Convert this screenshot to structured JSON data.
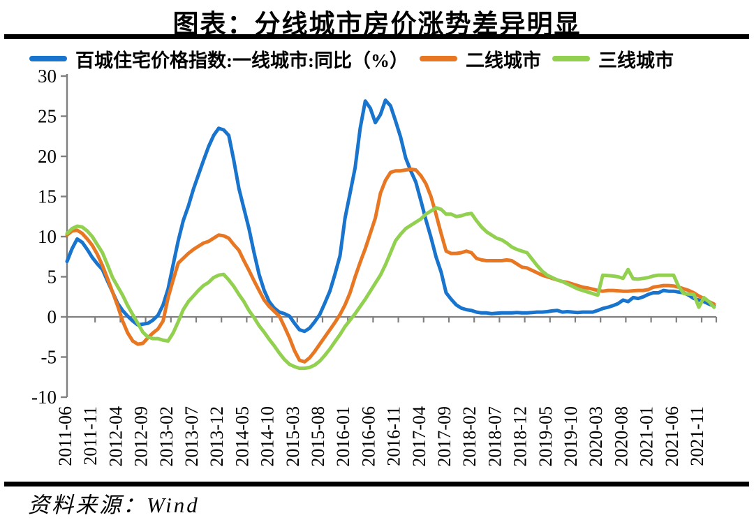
{
  "page": {
    "title": "图表：分线城市房价涨势差异明显",
    "source": "资料来源：Wind"
  },
  "colors": {
    "first_tier": "#1874cd",
    "second_tier": "#e87723",
    "third_tier": "#92d050",
    "axis": "#7f7f7f",
    "rule": "#000000"
  },
  "legend": {
    "items": [
      {
        "label": "百城住宅价格指数:一线城市:同比（%）",
        "color": "#1874cd"
      },
      {
        "label": "二线城市",
        "color": "#e87723"
      },
      {
        "label": "三线城市",
        "color": "#92d050"
      }
    ]
  },
  "chart_data": {
    "type": "line",
    "title": "图表：分线城市房价涨势差异明显",
    "xlabel": "",
    "ylabel": "",
    "ylim": [
      -10,
      30
    ],
    "y_ticks": [
      30,
      25,
      20,
      15,
      10,
      5,
      0,
      -5,
      -10
    ],
    "grid": false,
    "legend_position": "top",
    "x_unit": "monthly",
    "x_start": "2011-06",
    "x_end": "2022-02",
    "x_tick_labels": [
      "2011-06",
      "2011-11",
      "2012-04",
      "2012-09",
      "2013-02",
      "2013-07",
      "2013-12",
      "2014-05",
      "2014-10",
      "2015-03",
      "2015-08",
      "2016-01",
      "2016-06",
      "2016-11",
      "2017-04",
      "2017-09",
      "2018-02",
      "2018-07",
      "2018-12",
      "2019-05",
      "2019-10",
      "2020-03",
      "2020-08",
      "2021-01",
      "2021-06",
      "2021-11"
    ],
    "series": [
      {
        "id": "first-tier",
        "name": "百城住宅价格指数:一线城市:同比（%）",
        "color": "#1874cd",
        "values": [
          6.9,
          8.5,
          9.7,
          9.3,
          8.4,
          7.4,
          6.6,
          5.9,
          4.5,
          3.1,
          1.7,
          0.8,
          0.1,
          -0.5,
          -1.0,
          -0.9,
          -0.8,
          -0.4,
          0.2,
          1.5,
          3.5,
          6.5,
          9.5,
          12.0,
          13.8,
          15.9,
          17.7,
          19.5,
          21.2,
          22.6,
          23.5,
          23.3,
          22.6,
          19.5,
          16.0,
          13.5,
          11.0,
          8.0,
          5.3,
          3.3,
          1.9,
          1.1,
          0.6,
          0.4,
          0.1,
          -0.8,
          -1.6,
          -1.8,
          -1.4,
          -0.6,
          0.3,
          1.7,
          3.2,
          5.3,
          7.6,
          12.3,
          15.4,
          18.6,
          23.5,
          26.9,
          26.0,
          24.2,
          25.2,
          27.0,
          26.3,
          24.4,
          22.4,
          19.8,
          18.2,
          16.8,
          14.5,
          12.1,
          9.9,
          7.5,
          5.6,
          3.0,
          2.2,
          1.5,
          1.1,
          0.9,
          0.8,
          0.6,
          0.5,
          0.5,
          0.4,
          0.45,
          0.5,
          0.5,
          0.5,
          0.55,
          0.5,
          0.5,
          0.55,
          0.6,
          0.6,
          0.65,
          0.75,
          0.8,
          0.6,
          0.65,
          0.6,
          0.55,
          0.6,
          0.6,
          0.6,
          0.8,
          1.05,
          1.2,
          1.4,
          1.65,
          2.1,
          1.9,
          2.4,
          2.3,
          2.5,
          2.8,
          3.0,
          3.0,
          3.3,
          3.2,
          3.2,
          3.1,
          3.0,
          2.7,
          2.3,
          2.1,
          1.9,
          1.6,
          1.35
        ]
      },
      {
        "id": "second-tier",
        "name": "二线城市",
        "color": "#e87723",
        "values": [
          10.2,
          10.7,
          10.8,
          10.4,
          9.7,
          8.9,
          7.8,
          6.4,
          4.8,
          3.1,
          1.4,
          -0.5,
          -2.0,
          -3.0,
          -3.4,
          -3.3,
          -2.6,
          -2.0,
          -1.5,
          -0.5,
          2.4,
          4.6,
          6.7,
          7.3,
          7.9,
          8.4,
          8.8,
          9.2,
          9.4,
          9.8,
          10.2,
          10.1,
          9.8,
          9.0,
          8.3,
          7.0,
          5.8,
          4.5,
          3.3,
          2.1,
          1.3,
          0.7,
          0.1,
          -1.2,
          -2.6,
          -4.2,
          -5.4,
          -5.6,
          -5.1,
          -4.3,
          -3.4,
          -2.5,
          -1.6,
          -0.7,
          0.3,
          1.5,
          3.0,
          5.0,
          6.8,
          8.5,
          10.4,
          12.3,
          15.4,
          17.0,
          18.0,
          18.2,
          18.2,
          18.3,
          18.4,
          18.3,
          17.6,
          16.6,
          15.0,
          12.8,
          10.4,
          8.2,
          7.9,
          7.9,
          8.0,
          8.2,
          8.0,
          7.3,
          7.1,
          7.0,
          7.0,
          7.0,
          7.0,
          7.1,
          7.0,
          6.6,
          6.2,
          6.1,
          5.8,
          5.5,
          5.2,
          5.0,
          4.8,
          4.6,
          4.4,
          4.3,
          4.1,
          3.9,
          3.7,
          3.6,
          3.45,
          3.3,
          3.2,
          3.3,
          3.3,
          3.25,
          3.2,
          3.2,
          3.25,
          3.3,
          3.3,
          3.4,
          3.7,
          3.8,
          3.9,
          3.9,
          3.85,
          3.7,
          3.5,
          3.3,
          3.0,
          2.6,
          2.3,
          1.9,
          1.6
        ]
      },
      {
        "id": "third-tier",
        "name": "三线城市",
        "color": "#92d050",
        "values": [
          10.4,
          11.0,
          11.3,
          11.2,
          10.7,
          10.0,
          9.0,
          8.0,
          6.5,
          4.9,
          3.8,
          2.7,
          1.4,
          0.3,
          -0.8,
          -1.9,
          -2.5,
          -2.7,
          -2.7,
          -2.9,
          -3.0,
          -2.0,
          -0.6,
          0.9,
          1.9,
          2.6,
          3.3,
          3.9,
          4.3,
          4.9,
          5.2,
          5.3,
          4.6,
          3.8,
          2.8,
          1.9,
          0.8,
          -0.1,
          -1.1,
          -1.9,
          -2.8,
          -3.6,
          -4.5,
          -5.3,
          -5.9,
          -6.2,
          -6.4,
          -6.4,
          -6.3,
          -6.0,
          -5.5,
          -4.8,
          -4.0,
          -3.1,
          -2.2,
          -1.2,
          -0.4,
          0.4,
          1.3,
          2.2,
          3.2,
          4.2,
          5.2,
          6.5,
          8.0,
          9.5,
          10.3,
          11.0,
          11.4,
          11.8,
          12.2,
          12.8,
          13.2,
          13.6,
          13.4,
          12.8,
          12.8,
          12.5,
          12.6,
          12.8,
          12.9,
          12.0,
          11.2,
          10.6,
          10.2,
          9.8,
          9.6,
          9.2,
          8.7,
          8.4,
          8.2,
          8.0,
          7.2,
          6.4,
          5.7,
          5.2,
          4.9,
          4.6,
          4.4,
          4.1,
          3.8,
          3.5,
          3.3,
          3.1,
          2.9,
          2.7,
          5.2,
          5.15,
          5.1,
          5.0,
          4.8,
          5.9,
          4.75,
          4.7,
          4.8,
          4.9,
          5.1,
          5.2,
          5.2,
          5.2,
          5.2,
          3.8,
          2.9,
          2.85,
          2.8,
          1.2,
          2.4,
          1.9,
          1.2
        ]
      }
    ]
  }
}
